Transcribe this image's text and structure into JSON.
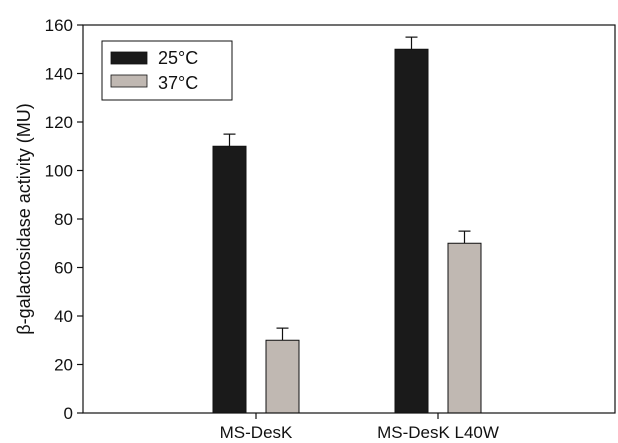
{
  "chart_data": {
    "type": "bar",
    "title": "",
    "xlabel": "",
    "ylabel": "β-galactosidase activity (MU)",
    "ylim": [
      0,
      160
    ],
    "yticks": [
      0,
      20,
      40,
      60,
      80,
      100,
      120,
      140,
      160
    ],
    "categories": [
      "MS-DesK",
      "MS-DesK L40W"
    ],
    "series": [
      {
        "name": "25°C",
        "color": "#1a1a1a",
        "values": [
          110,
          150
        ],
        "errors": [
          5,
          5
        ]
      },
      {
        "name": "37°C",
        "color": "#c0b8b2",
        "values": [
          30,
          70
        ],
        "errors": [
          5,
          5
        ]
      }
    ],
    "legend_position": "top-left",
    "grid": false
  }
}
